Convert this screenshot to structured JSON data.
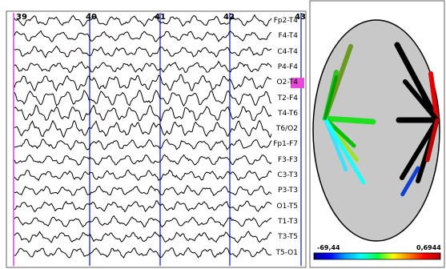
{
  "time_markers": [
    "39",
    "40",
    "41",
    "42",
    "43"
  ],
  "channels": [
    {
      "label": "Fp2-T4",
      "highlight": false
    },
    {
      "label": "F4-T4",
      "highlight": false
    },
    {
      "label": "C4-T4",
      "highlight": false
    },
    {
      "label": "P4-F4",
      "highlight": false
    },
    {
      "label": "O2-T4",
      "highlight": true
    },
    {
      "label": "T2-F4",
      "highlight": false
    },
    {
      "label": "T4-T6",
      "highlight": false
    },
    {
      "label": "T6/O2",
      "highlight": false
    },
    {
      "label": "Fp1-F7",
      "highlight": false
    },
    {
      "label": "F3-F3",
      "highlight": false
    },
    {
      "label": "C3-T3",
      "highlight": false
    },
    {
      "label": "P3-T3",
      "highlight": false
    },
    {
      "label": "O1-T5",
      "highlight": false
    },
    {
      "label": "T1-T3",
      "highlight": false
    },
    {
      "label": "T3-T5",
      "highlight": false
    },
    {
      "label": "T5-O1",
      "highlight": false
    }
  ],
  "colors": {
    "grid_line": "#1c28c8",
    "start_line": "#e838d8",
    "highlight": "#e848d8",
    "head_fill": "#c8c8c8",
    "trace": "#000000"
  },
  "scale": {
    "min_label": "-69,44",
    "max_label": "0,6944",
    "gradient": [
      "#00008a",
      "#0000ff",
      "#00a0ff",
      "#00ffff",
      "#00ff40",
      "#ffff00",
      "#ff8000",
      "#ff0000",
      "#b00000"
    ]
  }
}
